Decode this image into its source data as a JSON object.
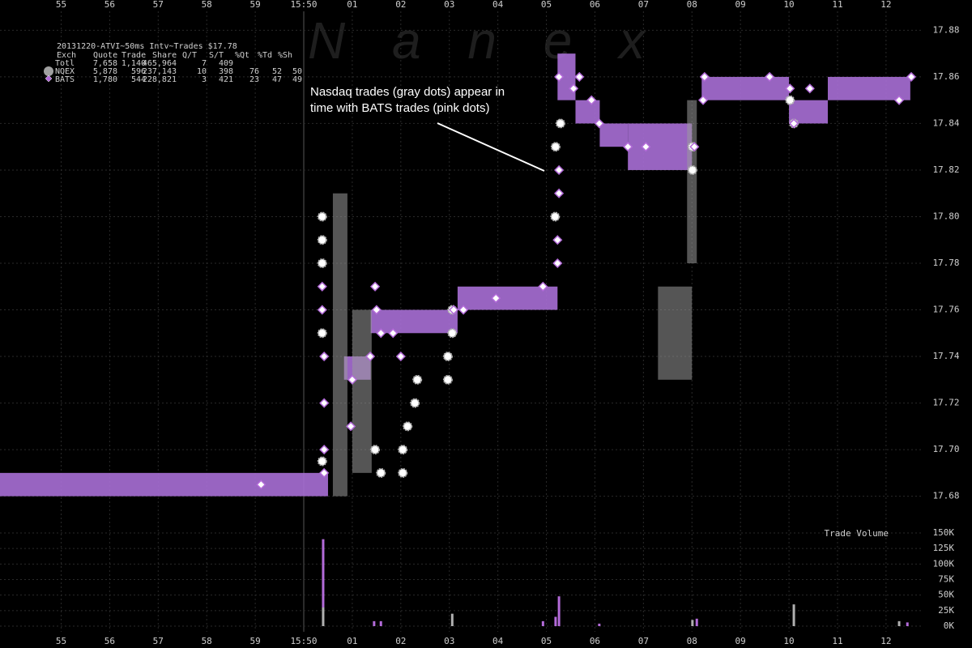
{
  "chart_data": [
    {
      "type": "scatter",
      "watermark": "N a n e x",
      "stats": {
        "header": "20131220-ATVI~50ms Intv~Trades $17.78",
        "columns": [
          "Exch",
          "Quote",
          "Trade",
          "Share",
          "Q/T",
          "S/T",
          "%Qt",
          "%Td",
          "%Sh"
        ],
        "rows": [
          [
            "Totl",
            "7,658",
            "1,140",
            "465,964",
            "7",
            "409",
            "",
            "",
            ""
          ],
          [
            "NQEX",
            "5,878",
            "596",
            "237,143",
            "10",
            "398",
            "76",
            "52",
            "50"
          ],
          [
            "BATS",
            "1,780",
            "544",
            "228,821",
            "3",
            "421",
            "23",
            "47",
            "49"
          ]
        ]
      },
      "annotation": [
        "Nasdaq trades (gray dots) appear in",
        "time with BATS trades (pink dots)"
      ],
      "xlim": [
        53.74,
        72.77
      ],
      "xticks": [
        55,
        56,
        57,
        58,
        59,
        {
          "value": 60,
          "label": "15:50"
        },
        {
          "value": 61,
          "label": "01"
        },
        {
          "value": 62,
          "label": "02"
        },
        {
          "value": 63,
          "label": "03"
        },
        {
          "value": 64,
          "label": "04"
        },
        {
          "value": 65,
          "label": "05"
        },
        {
          "value": 66,
          "label": "06"
        },
        {
          "value": 67,
          "label": "07"
        },
        {
          "value": 68,
          "label": "08"
        },
        {
          "value": 69,
          "label": "09"
        },
        {
          "value": 70,
          "label": "10"
        },
        {
          "value": 71,
          "label": "11"
        },
        {
          "value": 72,
          "label": "12"
        }
      ],
      "ylim": [
        17.667,
        17.893
      ],
      "yticks": [
        17.68,
        {
          "value": 17.7,
          "label": "17.70"
        },
        17.72,
        17.74,
        17.76,
        17.78,
        {
          "value": 17.8,
          "label": "17.80"
        },
        17.82,
        17.84,
        17.86,
        17.88
      ],
      "grid": true,
      "bands": [
        {
          "color": "#a86fd6",
          "items": [
            {
              "x": [
                53.74,
                60.5
              ],
              "low": 17.68,
              "high": 17.69
            },
            {
              "x": [
                60.83,
                61.38
              ],
              "low": 17.73,
              "high": 17.74
            },
            {
              "x": [
                61.38,
                63.17
              ],
              "low": 17.75,
              "high": 17.76
            },
            {
              "x": [
                63.17,
                65.23
              ],
              "low": 17.76,
              "high": 17.77
            },
            {
              "x": [
                65.23,
                65.6
              ],
              "low": 17.85,
              "high": 17.87
            },
            {
              "x": [
                65.6,
                66.1
              ],
              "low": 17.84,
              "high": 17.85
            },
            {
              "x": [
                66.1,
                66.68
              ],
              "low": 17.83,
              "high": 17.84
            },
            {
              "x": [
                66.68,
                68.0
              ],
              "low": 17.82,
              "high": 17.84
            },
            {
              "x": [
                68.2,
                70.0
              ],
              "low": 17.85,
              "high": 17.86
            },
            {
              "x": [
                70.0,
                70.8
              ],
              "low": 17.84,
              "high": 17.85
            },
            {
              "x": [
                70.8,
                72.5
              ],
              "low": 17.85,
              "high": 17.86
            }
          ]
        },
        {
          "color": "#9a9a9a",
          "items": [
            {
              "x": [
                60.6,
                60.9
              ],
              "low": 17.68,
              "high": 17.81
            },
            {
              "x": [
                61.0,
                61.4
              ],
              "low": 17.69,
              "high": 17.76
            },
            {
              "x": [
                67.3,
                68.0
              ],
              "low": 17.73,
              "high": 17.77
            },
            {
              "x": [
                67.9,
                68.1
              ],
              "low": 17.78,
              "high": 17.85
            }
          ]
        }
      ],
      "series": [
        {
          "name": "NQEX",
          "color": "#b0b0b0",
          "x": [
            60.38,
            60.38,
            60.38,
            60.38,
            60.38,
            61.47,
            61.59,
            62.04,
            62.04,
            62.14,
            62.29,
            62.34,
            62.97,
            62.97,
            63.06,
            63.06,
            65.18,
            65.19,
            65.29,
            68.01,
            68.01,
            70.1,
            70.02
          ],
          "values": [
            17.8,
            17.79,
            17.78,
            17.75,
            17.695,
            17.7,
            17.69,
            17.69,
            17.7,
            17.71,
            17.72,
            17.73,
            17.74,
            17.73,
            17.75,
            17.76,
            17.8,
            17.83,
            17.84,
            17.82,
            17.83,
            17.84,
            17.85
          ]
        },
        {
          "name": "BATS",
          "color": "#b36bd9",
          "x": [
            60.42,
            60.42,
            60.42,
            60.42,
            60.38,
            60.38,
            61.0,
            60.97,
            61.47,
            61.5,
            61.59,
            61.37,
            61.84,
            62.0,
            63.09,
            63.29,
            63.96,
            64.93,
            65.26,
            65.26,
            65.23,
            65.23,
            65.26,
            65.56,
            65.68,
            65.93,
            66.09,
            66.68,
            67.05,
            68.05,
            68.26,
            68.23,
            69.6,
            70.02,
            70.1,
            70.43,
            72.27,
            72.52,
            59.12
          ],
          "values": [
            17.69,
            17.7,
            17.72,
            17.74,
            17.76,
            17.77,
            17.73,
            17.71,
            17.77,
            17.76,
            17.75,
            17.74,
            17.75,
            17.74,
            17.76,
            17.76,
            17.765,
            17.77,
            17.82,
            17.81,
            17.79,
            17.78,
            17.86,
            17.855,
            17.86,
            17.85,
            17.84,
            17.83,
            17.83,
            17.83,
            17.86,
            17.85,
            17.86,
            17.855,
            17.84,
            17.855,
            17.85,
            17.86,
            17.685
          ]
        }
      ]
    },
    {
      "type": "bar",
      "title": "Trade Volume",
      "xlim": [
        53.74,
        72.77
      ],
      "ylim": [
        0,
        150000
      ],
      "yticks": [
        {
          "value": 0,
          "label": "0K"
        },
        {
          "value": 25000,
          "label": "25K"
        },
        {
          "value": 50000,
          "label": "50K"
        },
        {
          "value": 75000,
          "label": "75K"
        },
        {
          "value": 100000,
          "label": "100K"
        },
        {
          "value": 125000,
          "label": "125K"
        },
        {
          "value": 150000,
          "label": "150K"
        }
      ],
      "series": [
        {
          "color": "#b0b0b0",
          "x": [
            60.4,
            63.06,
            68.01,
            70.1,
            72.27
          ],
          "values": [
            30000,
            20000,
            10000,
            35000,
            8000
          ]
        },
        {
          "color": "#b36bd9",
          "x": [
            60.4,
            61.45,
            61.59,
            64.93,
            65.19,
            65.26,
            66.09,
            68.1,
            72.44
          ],
          "values": [
            110000,
            8000,
            8000,
            8000,
            15000,
            48000,
            4000,
            12000,
            6000
          ]
        }
      ]
    }
  ]
}
